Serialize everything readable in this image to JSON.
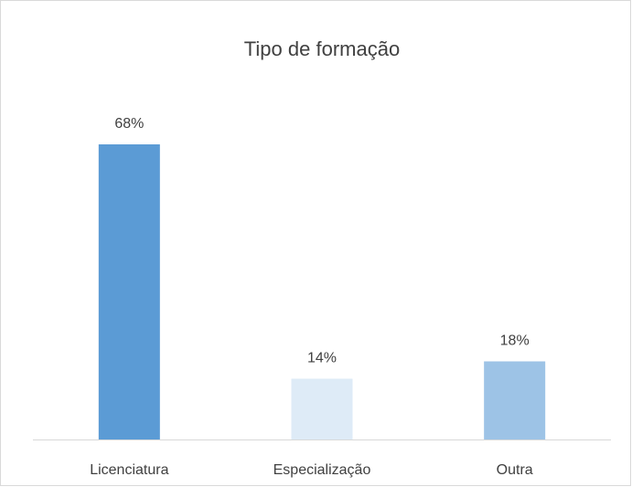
{
  "chart_data": {
    "type": "bar",
    "title": "Tipo de formação",
    "categories": [
      "Licenciatura",
      "Especialização",
      "Outra"
    ],
    "values": [
      68,
      14,
      18
    ],
    "value_labels": [
      "68%",
      "14%",
      "18%"
    ],
    "colors": [
      "#5b9bd5",
      "#deebf7",
      "#9dc3e6"
    ]
  }
}
